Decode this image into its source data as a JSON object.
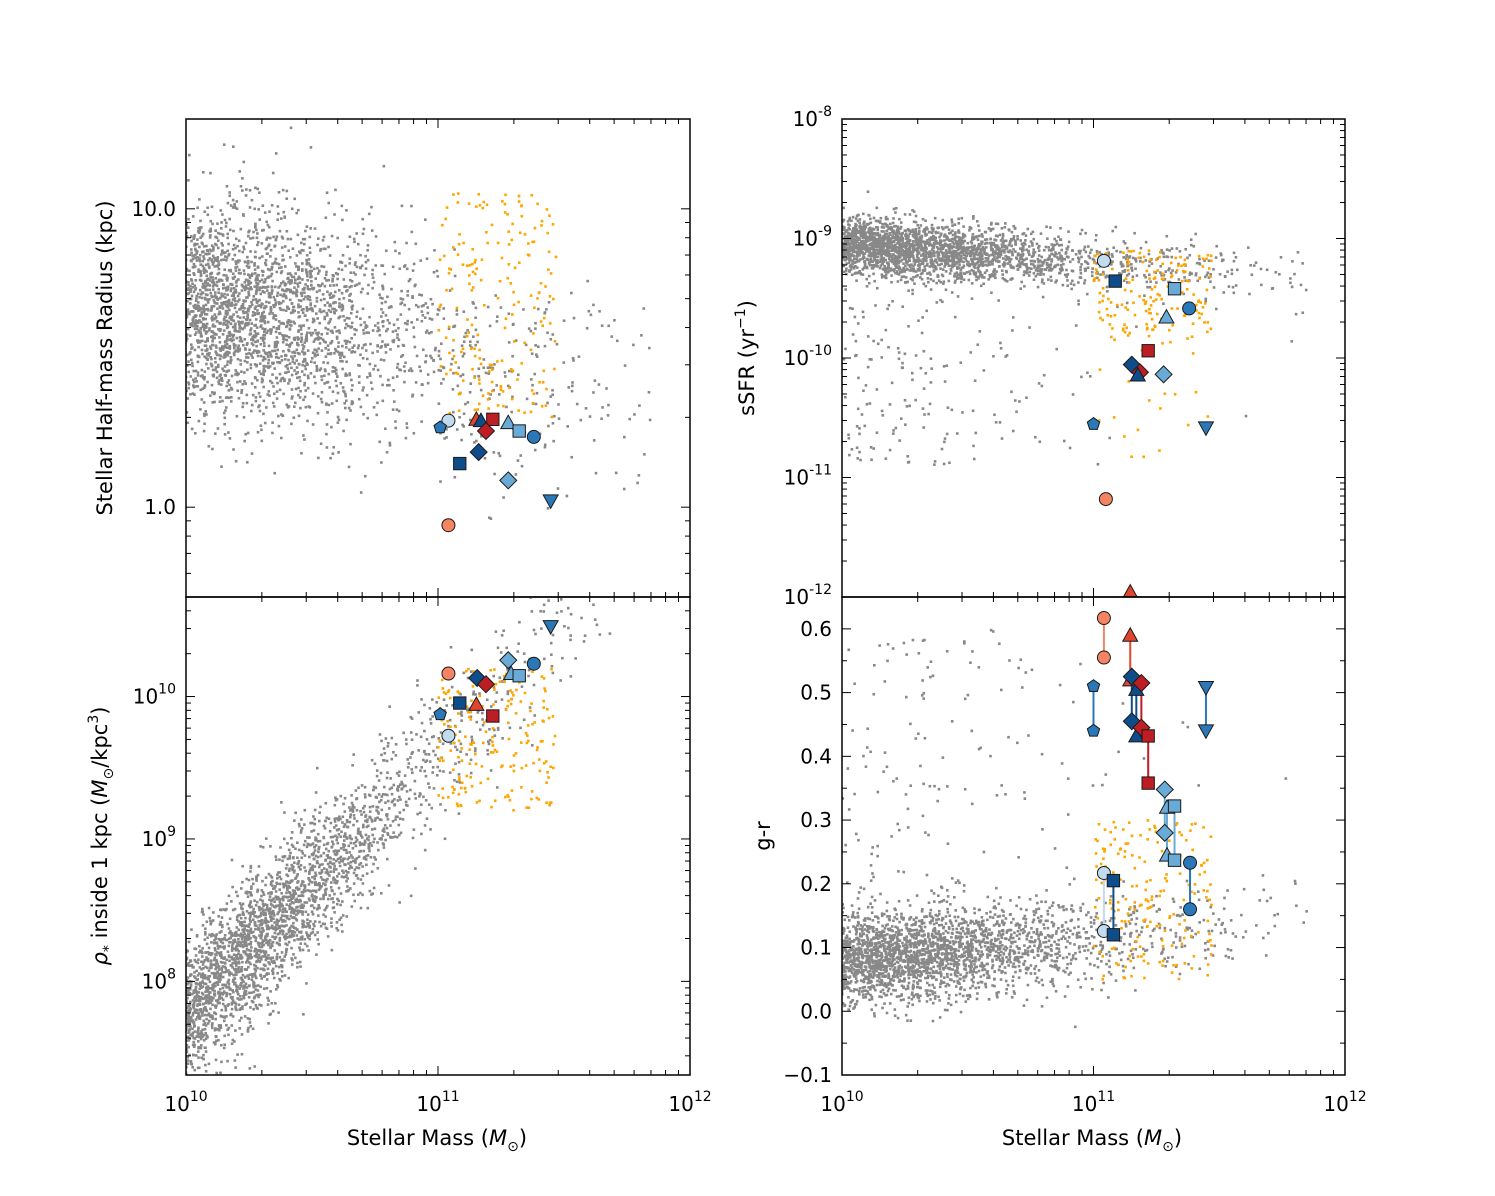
{
  "colors": {
    "background_points": "#888888",
    "selected_points": "#ffa500",
    "red_dark": "#bd1e24",
    "red_mid": "#e0452e",
    "red_light": "#f58463",
    "blue_dark": "#0f4c8a",
    "blue_mid": "#2a78b8",
    "blue_light": "#6aaad6",
    "blue_pale": "#c3dbee"
  },
  "xaxis": {
    "label_prefix": "Stellar Mass (",
    "label_symbol": "M",
    "label_sub": "⊙",
    "label_suffix": ")",
    "ticks": [
      {
        "base": "10",
        "exp": "10"
      },
      {
        "base": "10",
        "exp": "11"
      },
      {
        "base": "10",
        "exp": "12"
      }
    ]
  },
  "chart_data": [
    {
      "type": "scatter",
      "panel": "top-left",
      "ylabel": "Stellar Half-mass Radius (kpc)",
      "xscale": "log",
      "yscale": "log",
      "xlim": [
        10000000000.0,
        1000000000000.0
      ],
      "ylim": [
        0.5,
        20
      ],
      "yticks": [
        {
          "value": 1.0,
          "label": "1.0"
        },
        {
          "value": 10.0,
          "label": "10.0"
        }
      ],
      "background_scatter": {
        "description_free": true,
        "x_center_log": 10.2,
        "y_center": 5.0,
        "count": 3500,
        "color": "#888888"
      },
      "orange_scatter": {
        "count": 180,
        "color": "#ffa500",
        "x_range": [
          100000000000.0,
          300000000000.0
        ],
        "y_range": [
          1.8,
          11
        ]
      },
      "markers": [
        {
          "shape": "circle",
          "color": "red_light",
          "x": 110000000000.0,
          "y": 0.87
        },
        {
          "shape": "circle",
          "color": "blue_pale",
          "x": 110000000000.0,
          "y": 1.95
        },
        {
          "shape": "pentagon",
          "color": "blue_mid",
          "x": 102000000000.0,
          "y": 1.85
        },
        {
          "shape": "triangle-up",
          "color": "red_mid",
          "x": 142000000000.0,
          "y": 1.97
        },
        {
          "shape": "triangle-up",
          "color": "blue_dark",
          "x": 148000000000.0,
          "y": 1.95
        },
        {
          "shape": "square",
          "color": "red_dark",
          "x": 165000000000.0,
          "y": 1.97
        },
        {
          "shape": "diamond",
          "color": "red_dark",
          "x": 155000000000.0,
          "y": 1.8
        },
        {
          "shape": "diamond",
          "color": "blue_dark",
          "x": 145000000000.0,
          "y": 1.53
        },
        {
          "shape": "square",
          "color": "blue_dark",
          "x": 122000000000.0,
          "y": 1.4
        },
        {
          "shape": "triangle-up",
          "color": "blue_light",
          "x": 190000000000.0,
          "y": 1.92
        },
        {
          "shape": "square",
          "color": "blue_light",
          "x": 210000000000.0,
          "y": 1.8
        },
        {
          "shape": "circle",
          "color": "blue_mid",
          "x": 240000000000.0,
          "y": 1.72
        },
        {
          "shape": "diamond",
          "color": "blue_light",
          "x": 190000000000.0,
          "y": 1.23
        },
        {
          "shape": "triangle-down",
          "color": "blue_mid",
          "x": 280000000000.0,
          "y": 1.05
        }
      ]
    },
    {
      "type": "scatter",
      "panel": "top-right",
      "ylabel_prefix": "sSFR (yr",
      "ylabel_exp": "−1",
      "ylabel_suffix": ")",
      "xscale": "log",
      "yscale": "log",
      "xlim": [
        10000000000.0,
        1000000000000.0
      ],
      "ylim": [
        1e-12,
        1e-08
      ],
      "yticks": [
        {
          "value": 1e-12,
          "base": "10",
          "exp": "-12"
        },
        {
          "value": 1e-11,
          "base": "10",
          "exp": "-11"
        },
        {
          "value": 1e-10,
          "base": "10",
          "exp": "-10"
        },
        {
          "value": 1e-09,
          "base": "10",
          "exp": "-9"
        },
        {
          "value": 1e-08,
          "base": "10",
          "exp": "-8"
        }
      ],
      "markers": [
        {
          "shape": "circle",
          "color": "blue_pale",
          "x": 110000000000.0,
          "y": 6.5e-10
        },
        {
          "shape": "square",
          "color": "blue_dark",
          "x": 122000000000.0,
          "y": 4.4e-10
        },
        {
          "shape": "square",
          "color": "blue_light",
          "x": 210000000000.0,
          "y": 3.8e-10
        },
        {
          "shape": "circle",
          "color": "blue_mid",
          "x": 240000000000.0,
          "y": 2.6e-10
        },
        {
          "shape": "triangle-up",
          "color": "blue_light",
          "x": 195000000000.0,
          "y": 2.2e-10
        },
        {
          "shape": "square",
          "color": "red_dark",
          "x": 165000000000.0,
          "y": 1.15e-10
        },
        {
          "shape": "diamond",
          "color": "blue_dark",
          "x": 142000000000.0,
          "y": 8.8e-11
        },
        {
          "shape": "diamond",
          "color": "red_dark",
          "x": 153000000000.0,
          "y": 7.6e-11
        },
        {
          "shape": "triangle-up",
          "color": "blue_dark",
          "x": 150000000000.0,
          "y": 7.2e-11
        },
        {
          "shape": "diamond",
          "color": "blue_light",
          "x": 190000000000.0,
          "y": 7.3e-11
        },
        {
          "shape": "pentagon",
          "color": "blue_mid",
          "x": 100000000000.0,
          "y": 2.8e-11
        },
        {
          "shape": "triangle-down",
          "color": "blue_mid",
          "x": 280000000000.0,
          "y": 2.6e-11
        },
        {
          "shape": "circle",
          "color": "red_light",
          "x": 112000000000.0,
          "y": 6.6e-12
        },
        {
          "shape": "triangle-up",
          "color": "red_mid",
          "x": 140000000000.0,
          "y": 1.1e-12
        }
      ]
    },
    {
      "type": "scatter",
      "panel": "bottom-left",
      "ylabel_rho": "ρ",
      "ylabel_rho_sub": "*",
      "ylabel_mid": " inside 1 kpc (",
      "ylabel_m": "M",
      "ylabel_m_sub": "⊙",
      "ylabel_unit": "/kpc",
      "ylabel_unit_exp": "3",
      "ylabel_suffix": ")",
      "xscale": "log",
      "yscale": "log",
      "xlim": [
        10000000000.0,
        1000000000000.0
      ],
      "ylim": [
        22000000.0,
        50000000000.0
      ],
      "yticks": [
        {
          "value": 100000000.0,
          "base": "10",
          "exp": "8"
        },
        {
          "value": 1000000000.0,
          "base": "10",
          "exp": "9"
        },
        {
          "value": 10000000000.0,
          "base": "10",
          "exp": "10"
        }
      ],
      "markers": [
        {
          "shape": "triangle-down",
          "color": "blue_mid",
          "x": 280000000000.0,
          "y": 31000000000.0
        },
        {
          "shape": "diamond",
          "color": "blue_light",
          "x": 190000000000.0,
          "y": 18000000000.0
        },
        {
          "shape": "circle",
          "color": "blue_mid",
          "x": 240000000000.0,
          "y": 17000000000.0
        },
        {
          "shape": "triangle-up",
          "color": "blue_light",
          "x": 195000000000.0,
          "y": 14500000000.0
        },
        {
          "shape": "square",
          "color": "blue_light",
          "x": 210000000000.0,
          "y": 14000000000.0
        },
        {
          "shape": "circle",
          "color": "red_light",
          "x": 110000000000.0,
          "y": 14500000000.0
        },
        {
          "shape": "diamond",
          "color": "blue_dark",
          "x": 143000000000.0,
          "y": 13500000000.0
        },
        {
          "shape": "diamond",
          "color": "red_dark",
          "x": 155000000000.0,
          "y": 12200000000.0
        },
        {
          "shape": "square",
          "color": "blue_dark",
          "x": 122000000000.0,
          "y": 9000000000.0
        },
        {
          "shape": "triangle-up",
          "color": "red_mid",
          "x": 142000000000.0,
          "y": 8800000000.0
        },
        {
          "shape": "pentagon",
          "color": "blue_mid",
          "x": 102000000000.0,
          "y": 7500000000.0
        },
        {
          "shape": "square",
          "color": "red_dark",
          "x": 165000000000.0,
          "y": 7300000000.0
        },
        {
          "shape": "circle",
          "color": "blue_pale",
          "x": 110000000000.0,
          "y": 5300000000.0
        }
      ]
    },
    {
      "type": "scatter",
      "panel": "bottom-right",
      "ylabel": "g-r",
      "xscale": "log",
      "yscale": "linear",
      "xlim": [
        10000000000.0,
        1000000000000.0
      ],
      "ylim": [
        -0.1,
        0.65
      ],
      "yticks": [
        {
          "value": -0.1,
          "label": "−0.1"
        },
        {
          "value": 0.0,
          "label": "0.0"
        },
        {
          "value": 0.1,
          "label": "0.1"
        },
        {
          "value": 0.2,
          "label": "0.2"
        },
        {
          "value": 0.3,
          "label": "0.3"
        },
        {
          "value": 0.4,
          "label": "0.4"
        },
        {
          "value": 0.5,
          "label": "0.5"
        },
        {
          "value": 0.6,
          "label": "0.6"
        }
      ],
      "pairs": [
        {
          "shape": "circle",
          "color": "red_light",
          "x": 110000000000.0,
          "y": [
            0.617,
            0.555
          ]
        },
        {
          "shape": "triangle-up",
          "color": "red_mid",
          "x": 140000000000.0,
          "y": [
            0.59,
            0.52
          ]
        },
        {
          "shape": "diamond",
          "color": "blue_dark",
          "x": 142000000000.0,
          "y": [
            0.525,
            0.455
          ]
        },
        {
          "shape": "triangle-up",
          "color": "blue_dark",
          "x": 148000000000.0,
          "y": [
            0.505,
            0.432
          ]
        },
        {
          "shape": "diamond",
          "color": "red_dark",
          "x": 155000000000.0,
          "y": [
            0.515,
            0.445
          ]
        },
        {
          "shape": "square",
          "color": "red_dark",
          "x": 165000000000.0,
          "y": [
            0.432,
            0.358
          ]
        },
        {
          "shape": "pentagon",
          "color": "blue_mid",
          "x": 100000000000.0,
          "y": [
            0.51,
            0.44
          ]
        },
        {
          "shape": "triangle-down",
          "color": "blue_mid",
          "x": 280000000000.0,
          "y": [
            0.508,
            0.44
          ]
        },
        {
          "shape": "diamond",
          "color": "blue_light",
          "x": 192000000000.0,
          "y": [
            0.348,
            0.28
          ]
        },
        {
          "shape": "triangle-up",
          "color": "blue_light",
          "x": 196000000000.0,
          "y": [
            0.32,
            0.245
          ]
        },
        {
          "shape": "square",
          "color": "blue_light",
          "x": 210000000000.0,
          "y": [
            0.322,
            0.237
          ]
        },
        {
          "shape": "circle",
          "color": "blue_mid",
          "x": 242000000000.0,
          "y": [
            0.233,
            0.16
          ]
        },
        {
          "shape": "circle",
          "color": "blue_pale",
          "x": 110000000000.0,
          "y": [
            0.217,
            0.126
          ]
        },
        {
          "shape": "square",
          "color": "blue_dark",
          "x": 120000000000.0,
          "y": [
            0.205,
            0.12
          ]
        }
      ]
    }
  ]
}
